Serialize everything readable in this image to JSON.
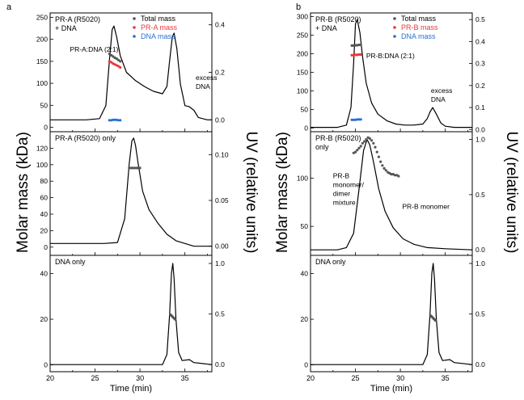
{
  "figure": {
    "colors": {
      "trace": "#000000",
      "total": "#555555",
      "protein": "#e8383d",
      "dna": "#2a6fd1",
      "frame": "#000000"
    }
  },
  "chart_data": [
    {
      "type": "line",
      "panel_letter": "a",
      "xlabel": "Time (min)",
      "ylabel": "Molar mass (kDa)",
      "y2label": "UV (relative units)",
      "xlim": [
        20,
        38
      ],
      "xticks": [
        "20",
        "25",
        "30",
        "35"
      ],
      "plots": [
        {
          "name": "top",
          "ylim": [
            -10,
            260
          ],
          "yticks": [
            "0",
            "50",
            "100",
            "150",
            "200",
            "250"
          ],
          "y2lim": [
            -0.05,
            0.45
          ],
          "y2ticks": [
            "0.0",
            "0.2",
            "0.4"
          ],
          "label": "PR-A (R5020)\n+ DNA",
          "annotations": [
            {
              "text": "PR-A:DNA (2:1)",
              "x": 22.2,
              "y": 172
            },
            {
              "text": "excess\nDNA",
              "x": 36.2,
              "y": 108
            }
          ],
          "legend": {
            "position": "top-right",
            "entries": [
              {
                "label": "Total mass",
                "colorKey": "total"
              },
              {
                "label": "PR-A mass",
                "colorKey": "protein"
              },
              {
                "label": "DNA mass",
                "colorKey": "dna"
              }
            ]
          },
          "uv": {
            "x": [
              20,
              24,
              25.5,
              26.2,
              26.6,
              26.9,
              27.1,
              27.4,
              27.8,
              28.5,
              29.5,
              30.5,
              31.5,
              32.5,
              33,
              33.3,
              33.6,
              33.8,
              34.1,
              34.5,
              35,
              35.5,
              36,
              36.5,
              37.5,
              38
            ],
            "y": [
              0.0,
              0.0,
              0.005,
              0.06,
              0.25,
              0.38,
              0.395,
              0.35,
              0.27,
              0.2,
              0.165,
              0.14,
              0.12,
              0.11,
              0.14,
              0.25,
              0.35,
              0.365,
              0.3,
              0.15,
              0.06,
              0.055,
              0.04,
              0.01,
              0.0,
              0.0
            ]
          },
          "mass_series": [
            {
              "name": "Total mass",
              "colorKey": "total",
              "x": [
                26.6,
                26.8,
                27.0,
                27.2,
                27.4,
                27.6,
                27.8
              ],
              "y": [
                167,
                164,
                161,
                158,
                156,
                153,
                150
              ]
            },
            {
              "name": "PR-A mass",
              "colorKey": "protein",
              "x": [
                26.6,
                26.8,
                27.0,
                27.2,
                27.4,
                27.6,
                27.8
              ],
              "y": [
                150,
                148,
                145,
                143,
                141,
                139,
                136
              ]
            },
            {
              "name": "DNA mass",
              "colorKey": "dna",
              "x": [
                26.6,
                26.8,
                27.0,
                27.2,
                27.4,
                27.6,
                27.8
              ],
              "y": [
                16,
                16,
                17,
                17,
                17,
                16,
                16
              ]
            }
          ]
        },
        {
          "name": "middle",
          "ylim": [
            -10,
            140
          ],
          "yticks": [
            "0",
            "20",
            "40",
            "60",
            "80",
            "100",
            "120"
          ],
          "y2lim": [
            -0.01,
            0.125
          ],
          "y2ticks": [
            "0.00",
            "0.05",
            "0.10"
          ],
          "label": "PR-A (R5020) only",
          "annotations": [],
          "uv": {
            "x": [
              20,
              26,
              27.5,
              28.3,
              28.8,
              29.1,
              29.3,
              29.5,
              29.8,
              30.3,
              31,
              32,
              33,
              34,
              35,
              36,
              38
            ],
            "y": [
              0.003,
              0.003,
              0.004,
              0.03,
              0.09,
              0.115,
              0.118,
              0.11,
              0.09,
              0.06,
              0.04,
              0.025,
              0.013,
              0.006,
              0.003,
              0.0,
              0.0
            ]
          },
          "mass_series": [
            {
              "name": "Total mass",
              "colorKey": "total",
              "x": [
                28.8,
                29.0,
                29.2,
                29.4,
                29.6,
                29.8,
                30.0
              ],
              "y": [
                96,
                96,
                96,
                96,
                96,
                96,
                96
              ]
            }
          ]
        },
        {
          "name": "bottom",
          "ylim": [
            -3,
            48
          ],
          "yticks": [
            "0",
            "20",
            "40"
          ],
          "y2lim": [
            -0.07,
            1.08
          ],
          "y2ticks": [
            "0.0",
            "0.5",
            "1.0"
          ],
          "label": "DNA only",
          "annotations": [],
          "uv": {
            "x": [
              20,
              32.5,
              33.0,
              33.3,
              33.5,
              33.65,
              33.8,
              34.0,
              34.3,
              34.7,
              35.5,
              36,
              38
            ],
            "y": [
              0.0,
              0.0,
              0.1,
              0.5,
              0.9,
              1.0,
              0.85,
              0.45,
              0.12,
              0.04,
              0.05,
              0.02,
              0.0
            ]
          },
          "mass_series": [
            {
              "name": "Total mass",
              "colorKey": "total",
              "x": [
                33.4,
                33.5,
                33.6,
                33.7,
                33.8,
                33.9
              ],
              "y": [
                22,
                21.6,
                21.2,
                20.8,
                20.4,
                20
              ]
            }
          ]
        }
      ]
    },
    {
      "type": "line",
      "panel_letter": "b",
      "xlabel": "Time (min)",
      "ylabel": "Molar mass (kDa)",
      "y2label": "UV (relative units)",
      "xlim": [
        20,
        38
      ],
      "xticks": [
        "20",
        "25",
        "30",
        "35"
      ],
      "plots": [
        {
          "name": "top",
          "ylim": [
            -10,
            310
          ],
          "yticks": [
            "0",
            "50",
            "100",
            "150",
            "200",
            "250",
            "300"
          ],
          "y2lim": [
            -0.01,
            0.53
          ],
          "y2ticks": [
            "0.0",
            "0.1",
            "0.2",
            "0.3",
            "0.4",
            "0.5"
          ],
          "label": "PR-B (R5020)\n+ DNA",
          "annotations": [
            {
              "text": "PR-B:DNA (2:1)",
              "x": 26.2,
              "y": 188
            },
            {
              "text": "excess\nDNA",
              "x": 33.4,
              "y": 95
            }
          ],
          "legend": {
            "position": "top-right",
            "entries": [
              {
                "label": "Total mass",
                "colorKey": "total"
              },
              {
                "label": "PR-B mass",
                "colorKey": "protein"
              },
              {
                "label": "DNA mass",
                "colorKey": "dna"
              }
            ]
          },
          "uv": {
            "x": [
              20,
              23,
              24,
              24.5,
              24.8,
              25.0,
              25.2,
              25.5,
              25.8,
              26.2,
              26.8,
              27.5,
              28.5,
              29.5,
              30.5,
              31.5,
              32.5,
              33,
              33.3,
              33.6,
              34,
              34.5,
              35,
              36,
              38
            ],
            "y": [
              0.01,
              0.01,
              0.02,
              0.1,
              0.3,
              0.48,
              0.5,
              0.44,
              0.33,
              0.21,
              0.12,
              0.07,
              0.04,
              0.025,
              0.02,
              0.02,
              0.025,
              0.05,
              0.08,
              0.1,
              0.07,
              0.03,
              0.015,
              0.01,
              0.01
            ]
          },
          "mass_series": [
            {
              "name": "Total mass",
              "colorKey": "total",
              "x": [
                24.6,
                24.8,
                25.0,
                25.2,
                25.4,
                25.6
              ],
              "y": [
                222,
                222,
                223,
                223,
                224,
                224
              ]
            },
            {
              "name": "PR-B mass",
              "colorKey": "protein",
              "x": [
                24.6,
                24.8,
                25.0,
                25.2,
                25.4,
                25.6
              ],
              "y": [
                196,
                196,
                197,
                197,
                198,
                198
              ]
            },
            {
              "name": "DNA mass",
              "colorKey": "dna",
              "x": [
                24.6,
                24.8,
                25.0,
                25.2,
                25.4,
                25.6
              ],
              "y": [
                22,
                22,
                22,
                23,
                23,
                23
              ]
            }
          ]
        },
        {
          "name": "middle",
          "ylim": [
            20,
            148
          ],
          "yticks": [
            "50",
            "100"
          ],
          "y2lim": [
            -0.05,
            1.07
          ],
          "y2ticks": [
            "0.0",
            "0.5",
            "1.0"
          ],
          "label": "PR-B (R5020)\nonly",
          "annotations": [
            {
              "text": "PR-B\nmonomer/\ndimer\nmixture",
              "x": 22.5,
              "y": 100
            },
            {
              "text": "PR-B monomer",
              "x": 30.2,
              "y": 68
            }
          ],
          "uv": {
            "x": [
              20,
              23,
              24,
              24.8,
              25.4,
              25.9,
              26.3,
              26.6,
              27.0,
              27.6,
              28.3,
              29.2,
              30.3,
              31.5,
              33,
              35,
              38
            ],
            "y": [
              0.0,
              0.0,
              0.02,
              0.15,
              0.55,
              0.9,
              1.0,
              0.95,
              0.8,
              0.55,
              0.35,
              0.2,
              0.1,
              0.05,
              0.02,
              0.01,
              0.0
            ]
          },
          "mass_series": [
            {
              "name": "Total mass",
              "colorKey": "total",
              "x": [
                24.8,
                25.0,
                25.2,
                25.4,
                25.6,
                25.8,
                26.0,
                26.2,
                26.4,
                26.6,
                26.8,
                27.0,
                27.2,
                27.4,
                27.6,
                27.8,
                28.0,
                28.2,
                28.4,
                28.6,
                28.8,
                29.0,
                29.2,
                29.4,
                29.6,
                29.8
              ],
              "y": [
                126,
                127,
                129,
                131,
                133,
                136,
                138,
                140,
                142,
                141,
                139,
                136,
                132,
                127,
                122,
                117,
                113,
                110,
                108,
                106,
                105,
                104,
                104,
                103,
                103,
                102
              ]
            }
          ]
        },
        {
          "name": "bottom",
          "ylim": [
            -3,
            48
          ],
          "yticks": [
            "0",
            "20",
            "40"
          ],
          "y2lim": [
            -0.07,
            1.08
          ],
          "y2ticks": [
            "0.0",
            "0.5",
            "1.0"
          ],
          "label": "DNA only",
          "annotations": [],
          "uv": {
            "x": [
              20,
              32.5,
              33.0,
              33.3,
              33.5,
              33.65,
              33.8,
              34.0,
              34.3,
              34.7,
              35.5,
              36,
              38
            ],
            "y": [
              0.0,
              0.0,
              0.1,
              0.5,
              0.9,
              1.0,
              0.85,
              0.45,
              0.12,
              0.04,
              0.05,
              0.02,
              0.0
            ]
          },
          "mass_series": [
            {
              "name": "Total mass",
              "colorKey": "total",
              "x": [
                33.4,
                33.5,
                33.6,
                33.7,
                33.8,
                33.9
              ],
              "y": [
                21.5,
                21.1,
                20.7,
                20.3,
                19.9,
                19.5
              ]
            }
          ]
        }
      ]
    }
  ]
}
